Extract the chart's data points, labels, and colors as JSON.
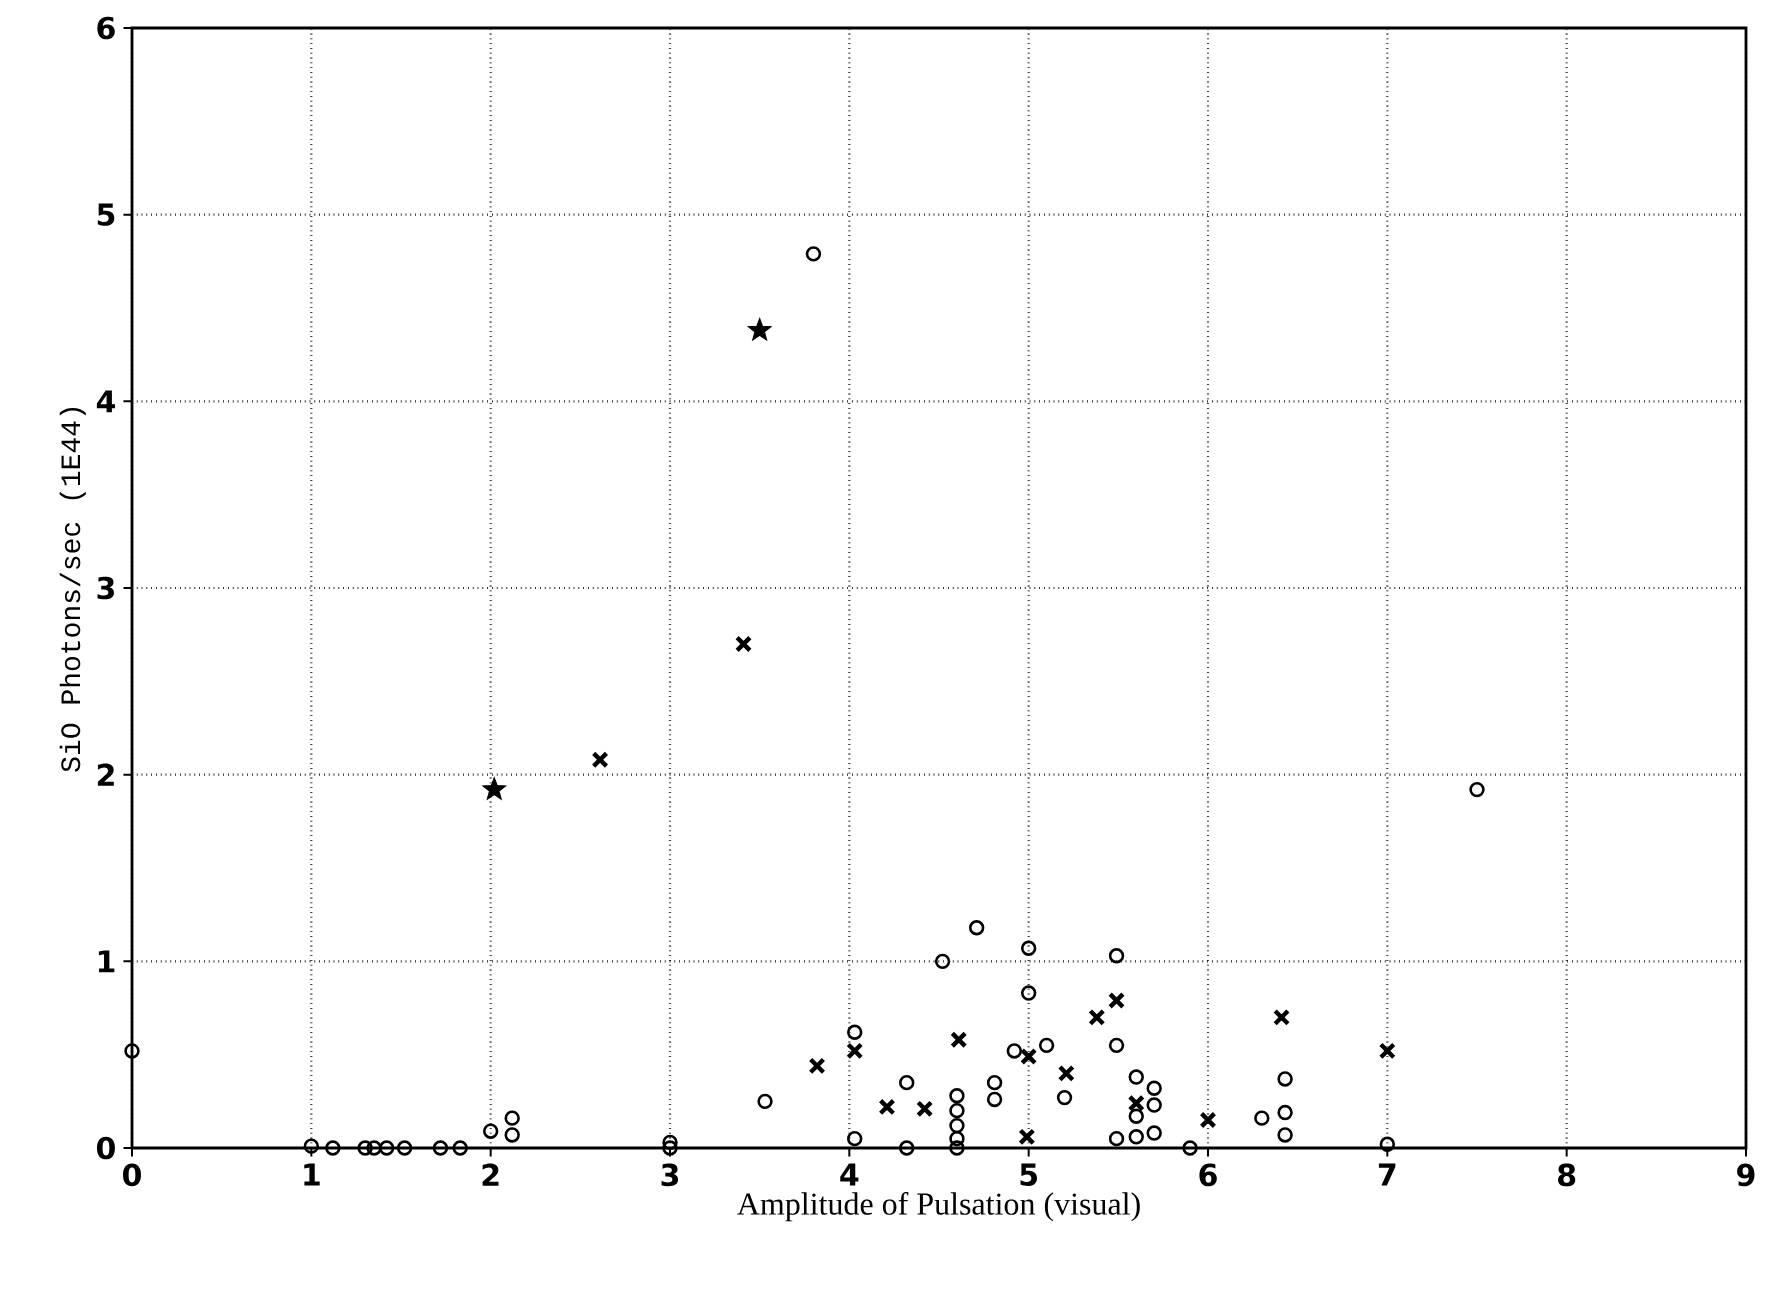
{
  "chart_data": {
    "type": "scatter",
    "xlabel": "Amplitude of Pulsation (visual)",
    "ylabel": "SiO Photons/sec (1E44)",
    "xlim": [
      0,
      9
    ],
    "ylim": [
      0,
      6
    ],
    "xticks": [
      0,
      1,
      2,
      3,
      4,
      5,
      6,
      7,
      8,
      9
    ],
    "yticks": [
      0,
      1,
      2,
      3,
      4,
      5,
      6
    ],
    "grid": true,
    "series": [
      {
        "marker": "circle",
        "color": "#000000",
        "x": [
          0,
          1.0,
          1.12,
          1.3,
          1.35,
          1.42,
          1.52,
          1.72,
          1.83,
          2.0,
          2.12,
          2.12,
          3.0,
          3.0,
          3.53,
          4.03,
          4.03,
          4.32,
          4.32,
          4.52,
          4.71,
          4.6,
          4.6,
          4.6,
          4.6,
          4.6,
          4.81,
          4.81,
          5.0,
          5.0,
          4.92,
          5.1,
          5.2,
          5.49,
          5.49,
          5.6,
          5.7,
          5.6,
          5.7,
          5.49,
          5.6,
          5.7,
          5.9,
          6.3,
          6.43,
          6.43,
          6.43,
          7.0,
          7.5,
          3.8
        ],
        "values": [
          0.52,
          0.01,
          0.0,
          0.0,
          0.0,
          0.0,
          0.0,
          0.0,
          0.0,
          0.09,
          0.16,
          0.07,
          0.03,
          0.0,
          0.25,
          0.62,
          0.05,
          0.35,
          0.0,
          1.0,
          1.18,
          0.28,
          0.2,
          0.12,
          0.05,
          0.0,
          0.35,
          0.26,
          1.07,
          0.83,
          0.52,
          0.55,
          0.27,
          1.03,
          0.55,
          0.38,
          0.32,
          0.17,
          0.23,
          0.05,
          0.06,
          0.08,
          0.0,
          0.16,
          0.37,
          0.19,
          0.07,
          0.02,
          1.92,
          4.79
        ]
      },
      {
        "marker": "cross",
        "color": "#000000",
        "x": [
          2.61,
          3.41,
          3.82,
          4.03,
          4.21,
          4.42,
          4.61,
          4.99,
          5.0,
          5.21,
          5.38,
          5.49,
          5.6,
          6.0,
          6.41,
          7.0
        ],
        "values": [
          2.08,
          2.7,
          0.44,
          0.52,
          0.22,
          0.21,
          0.58,
          0.06,
          0.49,
          0.4,
          0.7,
          0.79,
          0.24,
          0.15,
          0.7,
          0.52
        ]
      },
      {
        "marker": "star",
        "color": "#000000",
        "x": [
          2.02,
          3.5
        ],
        "values": [
          1.92,
          4.38
        ]
      }
    ]
  }
}
